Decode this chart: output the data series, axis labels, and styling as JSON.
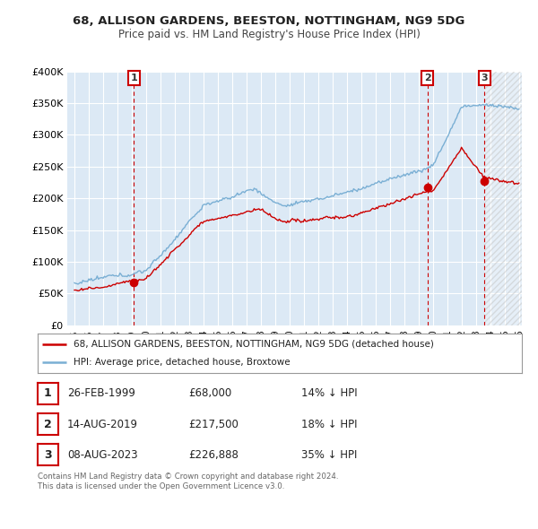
{
  "title": "68, ALLISON GARDENS, BEESTON, NOTTINGHAM, NG9 5DG",
  "subtitle": "Price paid vs. HM Land Registry's House Price Index (HPI)",
  "background_color": "#ffffff",
  "plot_bg_color": "#dce9f5",
  "grid_color": "#ffffff",
  "hpi_color": "#7aafd4",
  "price_color": "#cc0000",
  "ylim": [
    0,
    400000
  ],
  "yticks": [
    0,
    50000,
    100000,
    150000,
    200000,
    250000,
    300000,
    350000,
    400000
  ],
  "ytick_labels": [
    "£0",
    "£50K",
    "£100K",
    "£150K",
    "£200K",
    "£250K",
    "£300K",
    "£350K",
    "£400K"
  ],
  "sales": [
    {
      "date_num": 1999.15,
      "price": 68000,
      "label": "1"
    },
    {
      "date_num": 2019.62,
      "price": 217500,
      "label": "2"
    },
    {
      "date_num": 2023.6,
      "price": 226888,
      "label": "3"
    }
  ],
  "sale_vline_color": "#cc0000",
  "legend_entries": [
    "68, ALLISON GARDENS, BEESTON, NOTTINGHAM, NG9 5DG (detached house)",
    "HPI: Average price, detached house, Broxtowe"
  ],
  "table_rows": [
    {
      "num": "1",
      "date": "26-FEB-1999",
      "price": "£68,000",
      "pct": "14% ↓ HPI"
    },
    {
      "num": "2",
      "date": "14-AUG-2019",
      "price": "£217,500",
      "pct": "18% ↓ HPI"
    },
    {
      "num": "3",
      "date": "08-AUG-2023",
      "price": "£226,888",
      "pct": "35% ↓ HPI"
    }
  ],
  "footer": "Contains HM Land Registry data © Crown copyright and database right 2024.\nThis data is licensed under the Open Government Licence v3.0.",
  "xlim_start": 1994.5,
  "xlim_end": 2026.2,
  "hatch_start": 2023.6,
  "xticks": [
    1995,
    1996,
    1997,
    1998,
    1999,
    2000,
    2001,
    2002,
    2003,
    2004,
    2005,
    2006,
    2007,
    2008,
    2009,
    2010,
    2011,
    2012,
    2013,
    2014,
    2015,
    2016,
    2017,
    2018,
    2019,
    2020,
    2021,
    2022,
    2023,
    2024,
    2025,
    2026
  ]
}
